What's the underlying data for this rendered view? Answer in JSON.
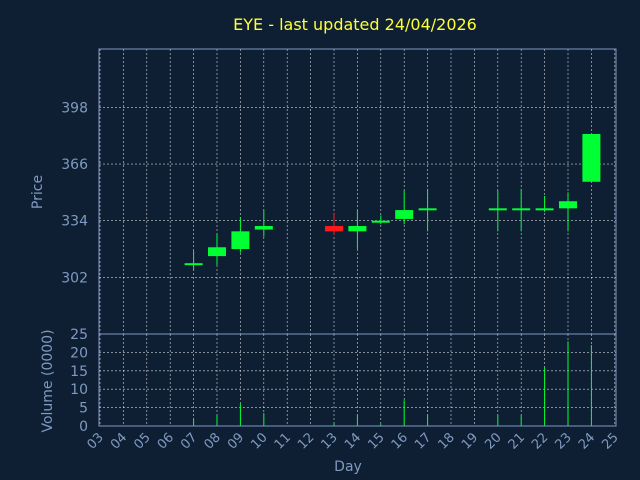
{
  "chart_data": {
    "type": "candlestick",
    "title": "EYE - last updated 24/04/2026",
    "price_panel": {
      "ylabel": "Price",
      "yticks": [
        302,
        334,
        366,
        398
      ],
      "ylim": [
        270,
        431
      ],
      "grid": true
    },
    "volume_panel": {
      "ylabel": "Volume (0000)",
      "yticks": [
        0,
        5,
        10,
        15,
        20,
        25
      ],
      "ylim": [
        0,
        25
      ],
      "grid": true
    },
    "xlabel": "Day",
    "x_ticks": [
      "03",
      "04",
      "05",
      "06",
      "07",
      "08",
      "09",
      "10",
      "11",
      "12",
      "13",
      "14",
      "15",
      "16",
      "17",
      "18",
      "19",
      "20",
      "21",
      "22",
      "23",
      "24",
      "25"
    ],
    "colors": {
      "up": "#00ff33",
      "down": "#ff1a1a",
      "title": "#ffff33",
      "axis": "#7f9ac0",
      "grid": "#ffffff",
      "background": "#0f1f33"
    },
    "candles": [
      {
        "day": "07",
        "open": 310,
        "high": 317,
        "low": 306,
        "close": 310,
        "volume": 2
      },
      {
        "day": "08",
        "open": 314,
        "high": 327,
        "low": 309,
        "close": 319,
        "volume": 3
      },
      {
        "day": "09",
        "open": 318,
        "high": 336,
        "low": 316,
        "close": 328,
        "volume": 6
      },
      {
        "day": "10",
        "open": 329,
        "high": 340,
        "low": 325,
        "close": 331,
        "volume": 3.5
      },
      {
        "day": "13",
        "open": 331,
        "high": 338,
        "low": 326,
        "close": 328,
        "volume": 0.8
      },
      {
        "day": "14",
        "open": 328,
        "high": 340,
        "low": 318,
        "close": 331,
        "volume": 3
      },
      {
        "day": "15",
        "open": 333,
        "high": 337,
        "low": 332,
        "close": 334,
        "volume": 0.5
      },
      {
        "day": "16",
        "open": 335,
        "high": 351,
        "low": 332,
        "close": 340,
        "volume": 7
      },
      {
        "day": "17",
        "open": 340,
        "high": 352,
        "low": 328,
        "close": 341,
        "volume": 3
      },
      {
        "day": "20",
        "open": 340,
        "high": 351,
        "low": 328,
        "close": 341,
        "volume": 3
      },
      {
        "day": "21",
        "open": 340,
        "high": 352,
        "low": 328,
        "close": 341,
        "volume": 3
      },
      {
        "day": "22",
        "open": 340,
        "high": 348,
        "low": 339,
        "close": 341,
        "volume": 16
      },
      {
        "day": "23",
        "open": 341,
        "high": 350,
        "low": 328,
        "close": 345,
        "volume": 23
      },
      {
        "day": "24",
        "open": 356,
        "high": 383,
        "low": 356,
        "close": 383,
        "volume": 22
      }
    ]
  }
}
